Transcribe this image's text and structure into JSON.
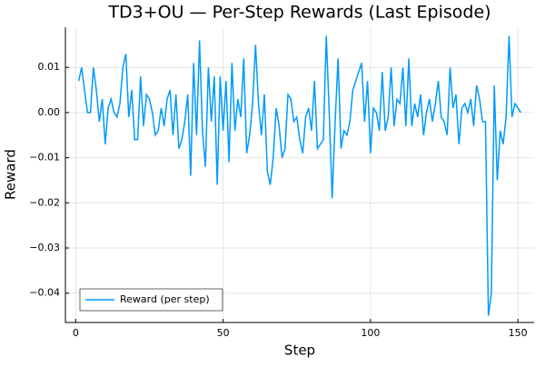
{
  "chart_data": {
    "type": "line",
    "title": "TD3+OU — Per-Step Rewards (Last Episode)",
    "x_label": "Step",
    "y_label": "Reward",
    "x": [
      1,
      2,
      3,
      4,
      5,
      6,
      7,
      8,
      9,
      10,
      11,
      12,
      13,
      14,
      15,
      16,
      17,
      18,
      19,
      20,
      21,
      22,
      23,
      24,
      25,
      26,
      27,
      28,
      29,
      30,
      31,
      32,
      33,
      34,
      35,
      36,
      37,
      38,
      39,
      40,
      41,
      42,
      43,
      44,
      45,
      46,
      47,
      48,
      49,
      50,
      51,
      52,
      53,
      54,
      55,
      56,
      57,
      58,
      59,
      60,
      61,
      62,
      63,
      64,
      65,
      66,
      67,
      68,
      69,
      70,
      71,
      72,
      73,
      74,
      75,
      76,
      77,
      78,
      79,
      80,
      81,
      82,
      83,
      84,
      85,
      86,
      87,
      88,
      89,
      90,
      91,
      92,
      93,
      94,
      95,
      96,
      97,
      98,
      99,
      100,
      101,
      102,
      103,
      104,
      105,
      106,
      107,
      108,
      109,
      110,
      111,
      112,
      113,
      114,
      115,
      116,
      117,
      118,
      119,
      120,
      121,
      122,
      123,
      124,
      125,
      126,
      127,
      128,
      129,
      130,
      131,
      132,
      133,
      134,
      135,
      136,
      137,
      138,
      139,
      140,
      141,
      142,
      143,
      144,
      145,
      146,
      147,
      148,
      149,
      150,
      151
    ],
    "series": [
      {
        "name": "Reward (per step)",
        "color": "#009af9",
        "values": [
          0.007,
          0.01,
          0.005,
          0.0,
          0.0,
          0.01,
          0.005,
          -0.002,
          0.003,
          -0.007,
          0.001,
          0.003,
          0.0,
          -0.001,
          0.002,
          0.01,
          0.013,
          -0.001,
          0.005,
          -0.006,
          -0.006,
          0.008,
          -0.003,
          0.004,
          0.003,
          0.0,
          -0.005,
          -0.004,
          0.001,
          -0.003,
          0.003,
          0.005,
          -0.005,
          0.004,
          -0.008,
          -0.006,
          -0.002,
          0.004,
          -0.014,
          0.011,
          -0.005,
          0.016,
          -0.004,
          -0.012,
          0.01,
          -0.002,
          0.008,
          -0.016,
          0.008,
          -0.004,
          0.007,
          -0.011,
          0.011,
          -0.004,
          0.003,
          -0.001,
          0.012,
          -0.009,
          -0.005,
          0.002,
          0.015,
          0.002,
          -0.005,
          0.004,
          -0.013,
          -0.016,
          -0.01,
          0.001,
          -0.003,
          -0.01,
          -0.008,
          0.004,
          0.003,
          -0.002,
          -0.001,
          -0.006,
          -0.009,
          -0.001,
          0.001,
          -0.004,
          0.007,
          -0.008,
          -0.007,
          -0.006,
          0.017,
          0.0,
          -0.019,
          -0.002,
          0.012,
          -0.008,
          -0.004,
          -0.005,
          -0.002,
          0.005,
          0.007,
          0.009,
          0.011,
          -0.002,
          0.007,
          -0.009,
          0.001,
          0.0,
          -0.004,
          0.009,
          -0.004,
          -0.001,
          0.01,
          -0.003,
          0.003,
          0.002,
          0.01,
          -0.003,
          0.012,
          -0.003,
          0.002,
          -0.001,
          0.004,
          -0.005,
          0.0,
          0.003,
          -0.002,
          0.002,
          0.007,
          -0.001,
          -0.002,
          -0.005,
          0.01,
          0.001,
          0.004,
          -0.007,
          0.001,
          0.002,
          0.0,
          0.003,
          -0.003,
          0.006,
          0.003,
          -0.002,
          -0.002,
          -0.045,
          -0.04,
          0.006,
          -0.015,
          -0.004,
          -0.007,
          -0.001,
          0.017,
          -0.001,
          0.002,
          0.001,
          0.0
        ]
      }
    ],
    "xlim": [
      -3.5,
      155.5
    ],
    "xticks": [
      0,
      50,
      100,
      150
    ],
    "ylim": [
      -0.0465,
      0.0189
    ],
    "yticks": [
      {
        "value": -0.04,
        "label": "−0.04"
      },
      {
        "value": -0.03,
        "label": "−0.03"
      },
      {
        "value": -0.02,
        "label": "−0.02"
      },
      {
        "value": -0.01,
        "label": "−0.01"
      },
      {
        "value": 0,
        "label": "0.00"
      },
      0.01
    ],
    "grid": true,
    "legend": "bottom-left"
  }
}
